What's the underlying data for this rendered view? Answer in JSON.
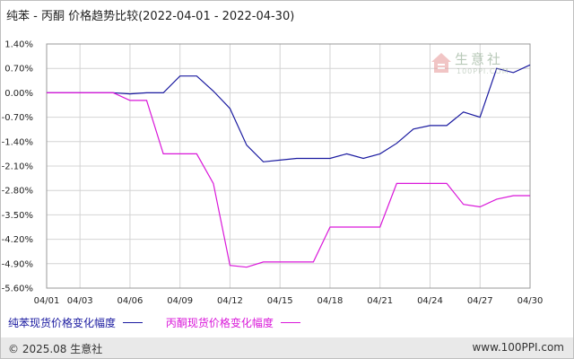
{
  "title": "纯苯 - 丙酮 价格趋势比较(2022-04-01 - 2022-04-30)",
  "logo": {
    "text": "生意社",
    "sub": "100PPI.COM"
  },
  "footer": {
    "left": "© 2025.08 生意社",
    "right": "www.100PPI.com"
  },
  "colors": {
    "series1": "#1a1aa0",
    "series2": "#d917d9",
    "grid": "#d4d4d4"
  },
  "chart_data": {
    "type": "line",
    "title": "纯苯 - 丙酮 价格趋势比较(2022-04-01 - 2022-04-30)",
    "x": [
      "04/01",
      "04/02",
      "04/03",
      "04/04",
      "04/05",
      "04/06",
      "04/07",
      "04/08",
      "04/09",
      "04/10",
      "04/11",
      "04/12",
      "04/13",
      "04/14",
      "04/15",
      "04/16",
      "04/17",
      "04/18",
      "04/19",
      "04/20",
      "04/21",
      "04/22",
      "04/23",
      "04/24",
      "04/25",
      "04/26",
      "04/27",
      "04/28",
      "04/29",
      "04/30"
    ],
    "xticks": [
      "04/01",
      "04/03",
      "04/06",
      "04/09",
      "04/12",
      "04/15",
      "04/18",
      "04/21",
      "04/24",
      "04/27",
      "04/30"
    ],
    "yticks": [
      "1.40%",
      "0.70%",
      "0.00%",
      "-0.70%",
      "-1.40%",
      "-2.10%",
      "-2.80%",
      "-3.50%",
      "-4.20%",
      "-4.90%",
      "-5.60%"
    ],
    "ylim": [
      -5.6,
      1.4
    ],
    "grid": true,
    "legend_position": "bottom-left",
    "series": [
      {
        "name": "纯苯现货价格变化幅度",
        "values": [
          0,
          0,
          0,
          0,
          0,
          -0.03,
          0,
          0,
          0.48,
          0.48,
          0.05,
          -0.45,
          -1.5,
          -1.98,
          -1.93,
          -1.88,
          -1.88,
          -1.88,
          -1.75,
          -1.88,
          -1.75,
          -1.45,
          -1.04,
          -0.94,
          -0.94,
          -0.55,
          -0.7,
          0.7,
          0.58,
          0.8
        ]
      },
      {
        "name": "丙酮现货价格变化幅度",
        "values": [
          0,
          0,
          0,
          0,
          0,
          -0.22,
          -0.22,
          -1.75,
          -1.75,
          -1.75,
          -2.6,
          -4.95,
          -5.0,
          -4.85,
          -4.85,
          -4.85,
          -4.85,
          -3.85,
          -3.85,
          -3.85,
          -3.85,
          -2.6,
          -2.6,
          -2.6,
          -2.6,
          -3.2,
          -3.27,
          -3.05,
          -2.95,
          -2.95
        ]
      }
    ]
  }
}
